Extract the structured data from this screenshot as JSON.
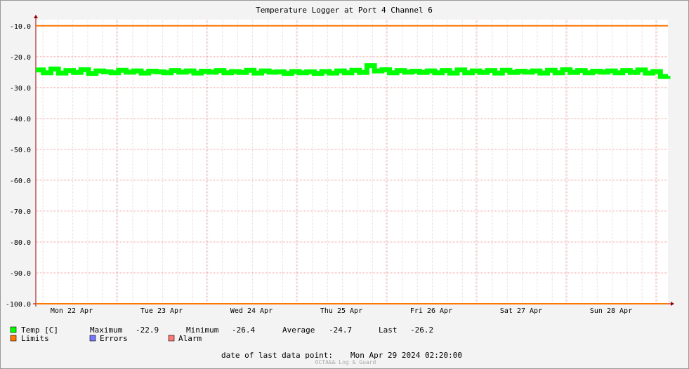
{
  "chart_data": {
    "type": "line",
    "title": "Temperature Logger at Port 4 Channel 6",
    "x_labels": [
      "Mon 22 Apr",
      "Tue 23 Apr",
      "Wed 24 Apr",
      "Thu 25 Apr",
      "Fri 26 Apr",
      "Sat 27 Apr",
      "Sun 28 Apr"
    ],
    "ylim": [
      -100,
      -8
    ],
    "yticks": [
      {
        "value": -10,
        "label": "-10.0"
      },
      {
        "value": -20,
        "label": "-20.0"
      },
      {
        "value": -30,
        "label": "-30.0"
      },
      {
        "value": -40,
        "label": "-40.0"
      },
      {
        "value": -50,
        "label": "-50.0"
      },
      {
        "value": -60,
        "label": "-60.0"
      },
      {
        "value": -70,
        "label": "-70.0"
      },
      {
        "value": -80,
        "label": "-80.0"
      },
      {
        "value": -90,
        "label": "-90.0"
      },
      {
        "value": -100,
        "label": "-100.0"
      }
    ],
    "grid": true,
    "series": [
      {
        "name": "Temp [C]",
        "color": "#00ff00",
        "values": [
          -24.3,
          -25.2,
          -24.0,
          -25.3,
          -24.5,
          -25.1,
          -24.2,
          -25.4,
          -24.6,
          -24.9,
          -25.2,
          -24.4,
          -25.0,
          -24.6,
          -25.3,
          -24.7,
          -24.9,
          -25.2,
          -24.5,
          -25.0,
          -24.6,
          -25.3,
          -24.7,
          -25.0,
          -24.5,
          -25.2,
          -24.8,
          -25.1,
          -24.4,
          -25.3,
          -24.6,
          -25.0,
          -24.9,
          -25.4,
          -24.8,
          -25.2,
          -24.9,
          -25.4,
          -24.8,
          -25.3,
          -24.6,
          -25.2,
          -24.4,
          -25.1,
          -22.9,
          -24.6,
          -24.2,
          -25.2,
          -24.5,
          -25.0,
          -24.7,
          -25.1,
          -24.6,
          -25.2,
          -24.5,
          -25.3,
          -24.3,
          -25.2,
          -24.6,
          -25.1,
          -24.5,
          -25.3,
          -24.4,
          -25.1,
          -24.7,
          -25.0,
          -24.6,
          -25.3,
          -24.4,
          -25.2,
          -24.2,
          -25.1,
          -24.5,
          -25.2,
          -24.7,
          -25.0,
          -24.6,
          -25.2,
          -24.5,
          -25.1,
          -24.3,
          -25.3,
          -24.8,
          -26.4,
          -26.2
        ]
      },
      {
        "name": "Limits",
        "color": "#ff7700",
        "values": [
          -10,
          -100
        ]
      }
    ],
    "legend_extra": [
      {
        "name": "Errors",
        "color": "#7777ff"
      },
      {
        "name": "Alarm",
        "color": "#ff7777"
      }
    ],
    "stats": [
      {
        "label": "Maximum",
        "value": -22.9
      },
      {
        "label": "Minimum",
        "value": -26.4
      },
      {
        "label": "Average",
        "value": -24.7
      },
      {
        "label": "Last",
        "value": -26.2
      }
    ],
    "footer_label": "date of last data point:",
    "footer_date": "Mon Apr 29 2024 02:20:00",
    "watermark": "OCTA&& Log & Guard"
  }
}
